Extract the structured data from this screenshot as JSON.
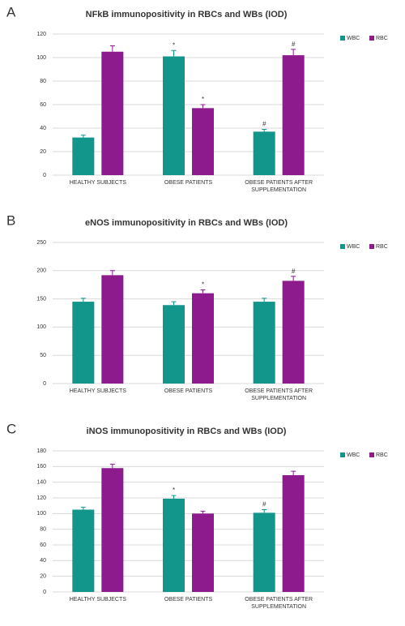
{
  "chart_data": [
    {
      "type": "bar",
      "label": "A",
      "title": "NFkB immunopositivity in RBCs and WBs (IOD)",
      "categories": [
        "HEALTHY SUBJECTS",
        "OBESE PATIENTS",
        "OBESE PATIENTS AFTER SUPPLEMENTATION"
      ],
      "series": [
        {
          "name": "WBC",
          "color": "#12958b",
          "values": [
            32,
            101,
            37
          ],
          "errors": [
            2,
            5,
            2
          ],
          "markers": [
            null,
            "*",
            "#"
          ]
        },
        {
          "name": "RBC",
          "color": "#8e1b8e",
          "values": [
            105,
            57,
            102
          ],
          "errors": [
            5,
            3,
            5
          ],
          "markers": [
            null,
            "*",
            "#"
          ]
        }
      ],
      "ylim": [
        0,
        120
      ],
      "yticks": [
        0,
        20,
        40,
        60,
        80,
        100,
        120
      ],
      "grid": true,
      "legend": "right"
    },
    {
      "type": "bar",
      "label": "B",
      "title": "eNOS immunopositivity in RBCs and WBs (IOD)",
      "categories": [
        "HEALTHY SUBJECTS",
        "OBESE PATIENTS",
        "OBESE PATIENTS AFTER SUPPLEMENTATION"
      ],
      "series": [
        {
          "name": "WBC",
          "color": "#12958b",
          "values": [
            145,
            139,
            145
          ],
          "errors": [
            6,
            6,
            6
          ],
          "markers": [
            null,
            null,
            null
          ]
        },
        {
          "name": "RBC",
          "color": "#8e1b8e",
          "values": [
            192,
            160,
            182
          ],
          "errors": [
            8,
            6,
            8
          ],
          "markers": [
            null,
            "*",
            "#"
          ]
        }
      ],
      "ylim": [
        0,
        250
      ],
      "yticks": [
        0,
        50,
        100,
        150,
        200,
        250
      ],
      "grid": true,
      "legend": "right"
    },
    {
      "type": "bar",
      "label": "C",
      "title": "iNOS immunopositivity in RBCs and WBs (IOD)",
      "categories": [
        "HEALTHY SUBJECTS",
        "OBESE PATIENTS",
        "OBESE PATIENTS AFTER SUPPLEMENTATION"
      ],
      "series": [
        {
          "name": "WBC",
          "color": "#12958b",
          "values": [
            105,
            119,
            101
          ],
          "errors": [
            3,
            4,
            4
          ],
          "markers": [
            null,
            "*",
            "#"
          ]
        },
        {
          "name": "RBC",
          "color": "#8e1b8e",
          "values": [
            158,
            100,
            149
          ],
          "errors": [
            5,
            3,
            5
          ],
          "markers": [
            null,
            null,
            null
          ]
        }
      ],
      "ylim": [
        0,
        180
      ],
      "yticks": [
        0,
        20,
        40,
        60,
        80,
        100,
        120,
        140,
        160,
        180
      ],
      "grid": true,
      "legend": "right"
    }
  ]
}
